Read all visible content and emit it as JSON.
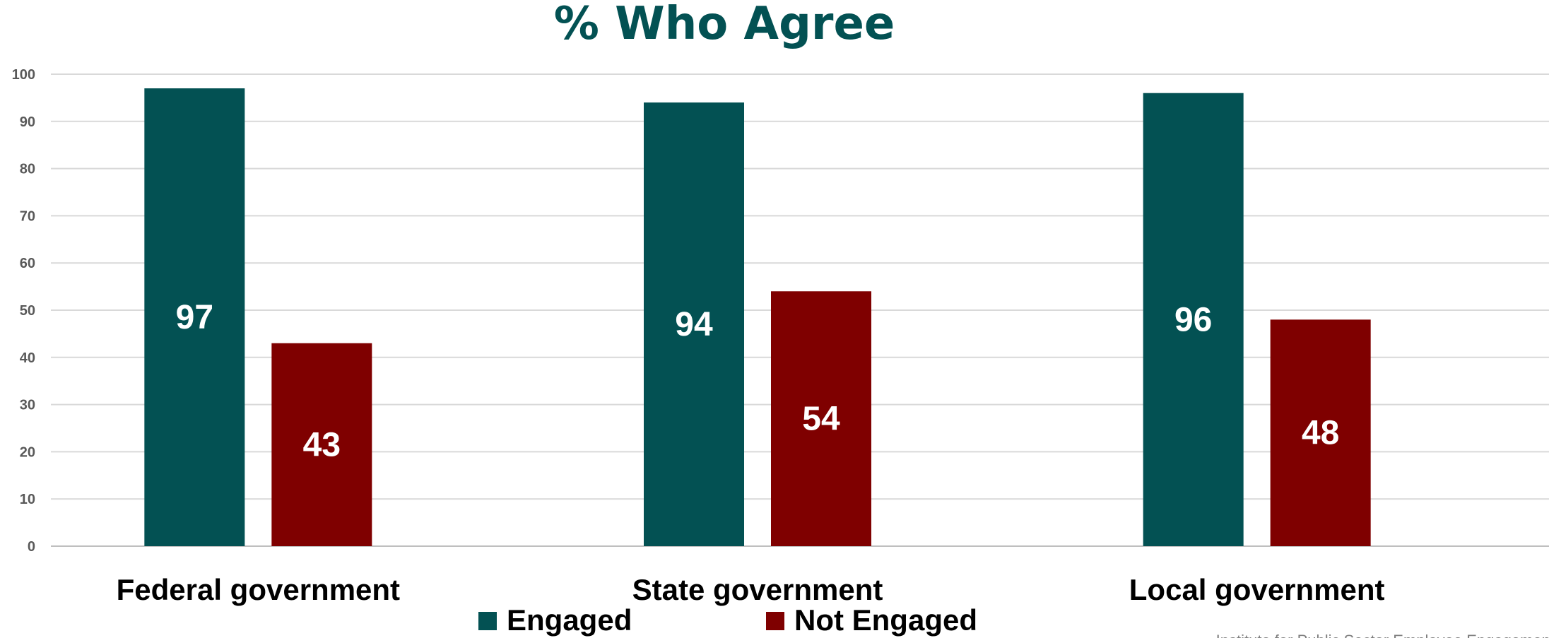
{
  "chart_data": {
    "type": "bar",
    "title": "% Who Agree",
    "categories": [
      "Federal government",
      "State government",
      "Local government"
    ],
    "series": [
      {
        "name": "Engaged",
        "values": [
          97,
          94,
          96
        ],
        "color": "#035153"
      },
      {
        "name": "Not Engaged",
        "values": [
          43,
          54,
          48
        ],
        "color": "#7f0000"
      }
    ],
    "ylim": [
      0,
      100
    ],
    "yticks": [
      0,
      10,
      20,
      30,
      40,
      50,
      60,
      70,
      80,
      90,
      100
    ],
    "grid": true,
    "legend_position": "bottom",
    "data_labels": true,
    "source": "Institute for Public Sector Employee Engagement"
  }
}
